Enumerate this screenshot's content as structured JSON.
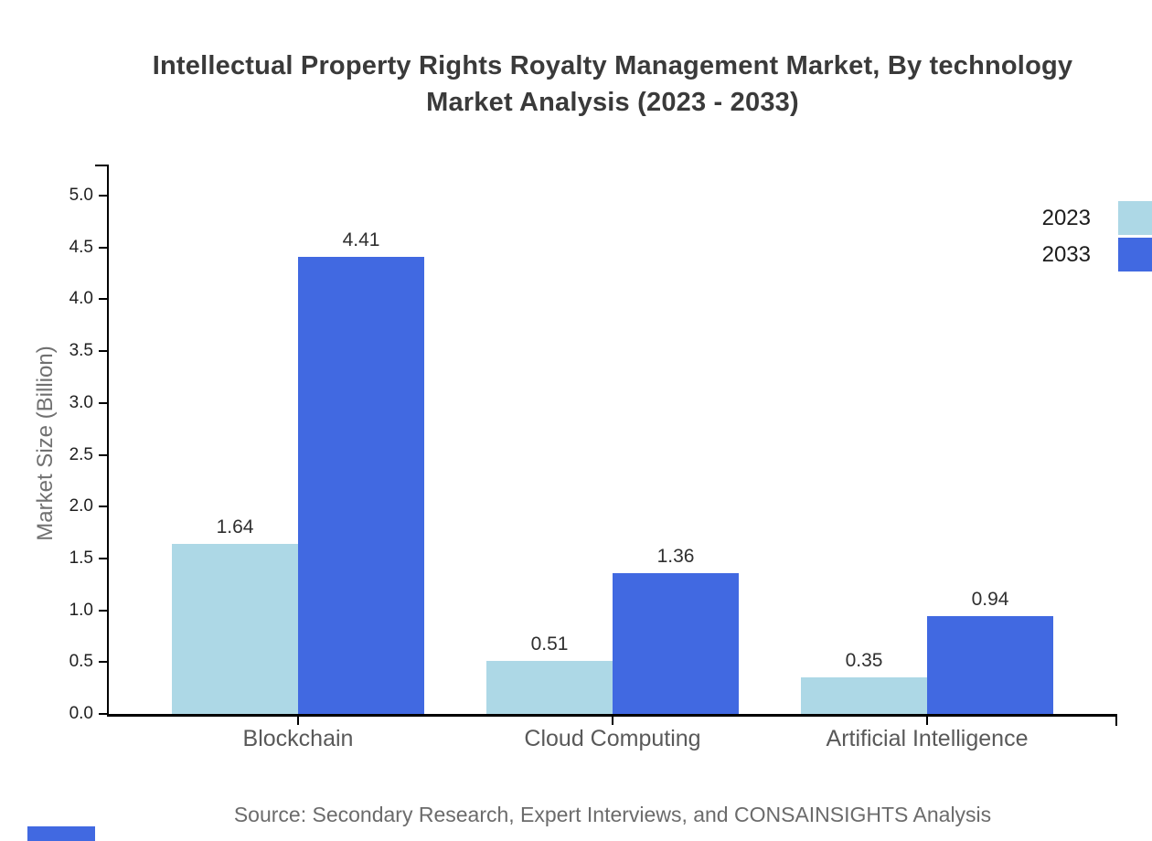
{
  "title": {
    "line1": "Intellectual Property Rights Royalty Management Market, By technology",
    "line2": "Market Analysis (2023 - 2033)"
  },
  "source_note": "Source: Secondary Research, Expert Interviews, and CONSAINSIGHTS Analysis",
  "colors": {
    "series_2023": "#ADD8E6",
    "series_2033": "#4169E1",
    "axis": "#000000",
    "title_text": "#3a3a3a",
    "tick_label_text": "#1f1f1f",
    "category_text": "#595959",
    "value_label_text": "#2f2f2f",
    "y_axis_title_text": "#707070",
    "source_text": "#6b6b6b",
    "accent_bar": "#4169E1"
  },
  "chart_data": {
    "type": "bar",
    "title": "Intellectual Property Rights Royalty Management Market, By technology Market Analysis (2023 - 2033)",
    "categories": [
      "Blockchain",
      "Cloud Computing",
      "Artificial Intelligence"
    ],
    "series": [
      {
        "name": "2023",
        "color": "#ADD8E6",
        "values": [
          1.64,
          0.51,
          0.35
        ]
      },
      {
        "name": "2033",
        "color": "#4169E1",
        "values": [
          4.41,
          1.36,
          0.94
        ]
      }
    ],
    "value_labels": [
      "1.64",
      "4.41",
      "0.51",
      "1.36",
      "0.35",
      "0.94"
    ],
    "xlabel": "",
    "ylabel": "Market Size (Billion)",
    "ylim": [
      0.0,
      5.0
    ],
    "ytick_step": 0.5,
    "yticks": [
      "0.0",
      "0.5",
      "1.0",
      "1.5",
      "2.0",
      "2.5",
      "3.0",
      "3.5",
      "4.0",
      "4.5",
      "5.0"
    ],
    "grid": false,
    "legend_position": "top-right",
    "legend_labels": [
      "2023",
      "2033"
    ]
  }
}
